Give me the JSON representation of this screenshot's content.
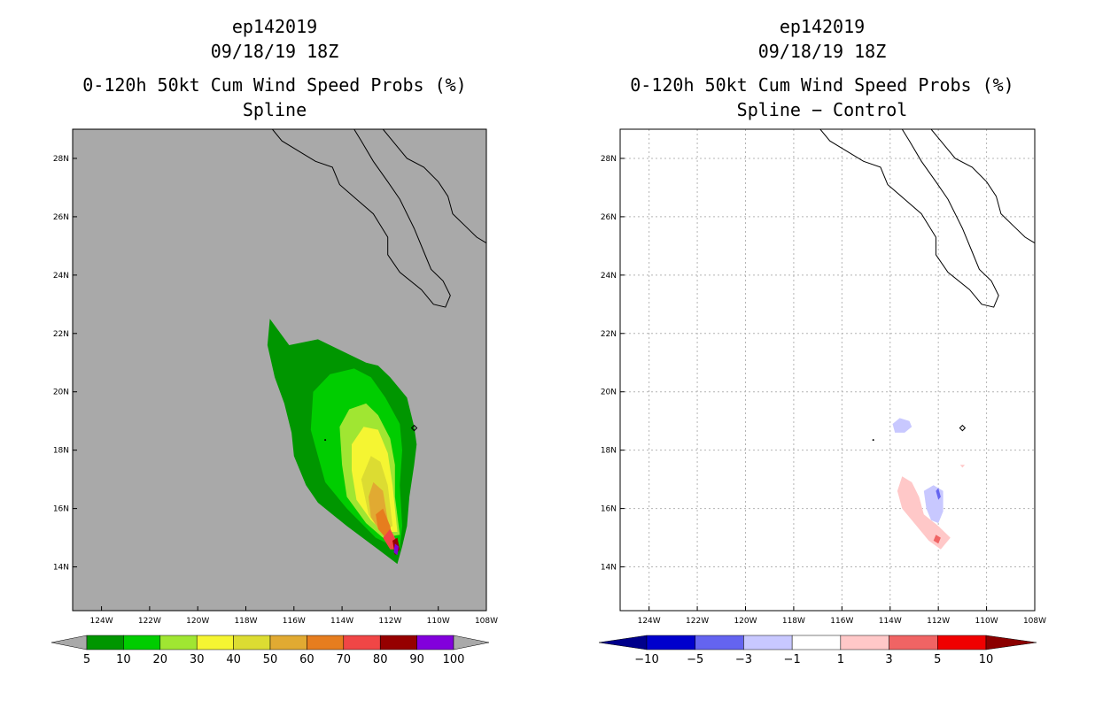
{
  "panels": [
    {
      "storm_id": "ep142019",
      "datetime": "09/18/19 18Z",
      "title": "0-120h 50kt Cum Wind Speed Probs (%)",
      "subtitle": "Spline"
    },
    {
      "storm_id": "ep142019",
      "datetime": "09/18/19 18Z",
      "title": "0-120h 50kt Cum Wind Speed Probs (%)",
      "subtitle": "Spline − Control"
    }
  ],
  "chart_data": [
    {
      "type": "heatmap",
      "title": "0-120h 50kt Cum Wind Speed Probs (%)",
      "subtitle": "Spline",
      "lon_range": [
        -125.2,
        -108
      ],
      "lat_range": [
        12.5,
        29
      ],
      "x_ticks": [
        "124W",
        "122W",
        "120W",
        "118W",
        "116W",
        "114W",
        "112W",
        "110W",
        "108W"
      ],
      "y_ticks": [
        "14N",
        "16N",
        "18N",
        "20N",
        "22N",
        "24N",
        "26N",
        "28N"
      ],
      "background_color": "#a9a9a9",
      "grid": false,
      "colorbar": {
        "labels": [
          "5",
          "10",
          "20",
          "30",
          "40",
          "50",
          "60",
          "70",
          "80",
          "90",
          "100"
        ],
        "colors": [
          "#009600",
          "#00cd00",
          "#a0e632",
          "#f5f532",
          "#dcdc32",
          "#e1aa32",
          "#e67d1e",
          "#f04646",
          "#960000",
          "#8200dc"
        ],
        "under_color": "#a9a9a9",
        "over_color": "#a9a9a9"
      },
      "contours": [
        {
          "level": 5,
          "points": [
            [
              -117.0,
              22.5
            ],
            [
              -116.2,
              21.6
            ],
            [
              -115.0,
              21.8
            ],
            [
              -114.0,
              21.4
            ],
            [
              -113.0,
              21.0
            ],
            [
              -112.5,
              20.9
            ],
            [
              -112.0,
              20.5
            ],
            [
              -111.3,
              19.8
            ],
            [
              -111.0,
              18.8
            ],
            [
              -110.9,
              18.2
            ],
            [
              -111.0,
              17.5
            ],
            [
              -111.2,
              16.4
            ],
            [
              -111.3,
              15.4
            ],
            [
              -111.5,
              14.7
            ],
            [
              -111.7,
              14.1
            ],
            [
              -112.5,
              14.6
            ],
            [
              -113.8,
              15.4
            ],
            [
              -115.0,
              16.2
            ],
            [
              -115.5,
              16.8
            ],
            [
              -116.0,
              17.8
            ],
            [
              -116.1,
              18.6
            ],
            [
              -116.4,
              19.6
            ],
            [
              -116.8,
              20.5
            ],
            [
              -117.1,
              21.6
            ]
          ]
        },
        {
          "level": 10,
          "points": [
            [
              -115.2,
              20.0
            ],
            [
              -114.5,
              20.6
            ],
            [
              -113.5,
              20.8
            ],
            [
              -112.8,
              20.5
            ],
            [
              -112.2,
              19.8
            ],
            [
              -111.6,
              18.9
            ],
            [
              -111.5,
              18.0
            ],
            [
              -111.6,
              16.8
            ],
            [
              -111.5,
              15.4
            ],
            [
              -111.6,
              14.6
            ],
            [
              -112.6,
              15.0
            ],
            [
              -113.8,
              16.0
            ],
            [
              -114.7,
              16.9
            ],
            [
              -115.0,
              17.8
            ],
            [
              -115.3,
              18.7
            ]
          ]
        },
        {
          "level": 20,
          "points": [
            [
              -114.1,
              18.8
            ],
            [
              -113.7,
              19.4
            ],
            [
              -113.0,
              19.6
            ],
            [
              -112.5,
              19.2
            ],
            [
              -112.0,
              18.4
            ],
            [
              -111.8,
              17.5
            ],
            [
              -111.8,
              16.4
            ],
            [
              -111.6,
              15.1
            ],
            [
              -112.3,
              15.0
            ],
            [
              -113.0,
              15.5
            ],
            [
              -113.8,
              16.4
            ],
            [
              -114.0,
              17.5
            ]
          ]
        },
        {
          "level": 30,
          "points": [
            [
              -113.6,
              18.2
            ],
            [
              -113.1,
              18.8
            ],
            [
              -112.5,
              18.7
            ],
            [
              -112.1,
              17.9
            ],
            [
              -111.9,
              16.8
            ],
            [
              -111.7,
              15.2
            ],
            [
              -112.3,
              15.2
            ],
            [
              -112.8,
              15.6
            ],
            [
              -113.4,
              16.3
            ],
            [
              -113.6,
              17.3
            ]
          ]
        },
        {
          "level": 40,
          "points": [
            [
              -113.2,
              17.0
            ],
            [
              -112.8,
              17.8
            ],
            [
              -112.4,
              17.6
            ],
            [
              -112.1,
              16.8
            ],
            [
              -111.9,
              15.4
            ],
            [
              -112.4,
              15.2
            ],
            [
              -112.9,
              15.8
            ]
          ]
        },
        {
          "level": 50,
          "points": [
            [
              -112.9,
              16.4
            ],
            [
              -112.7,
              16.9
            ],
            [
              -112.3,
              16.6
            ],
            [
              -112.1,
              15.6
            ],
            [
              -112.0,
              14.9
            ],
            [
              -112.4,
              15.2
            ],
            [
              -112.8,
              15.7
            ]
          ]
        },
        {
          "level": 60,
          "points": [
            [
              -112.6,
              15.8
            ],
            [
              -112.3,
              16.0
            ],
            [
              -112.0,
              15.4
            ],
            [
              -111.9,
              14.9
            ],
            [
              -112.2,
              15.0
            ],
            [
              -112.5,
              15.3
            ]
          ]
        },
        {
          "level": 70,
          "points": [
            [
              -112.3,
              15.0
            ],
            [
              -112.0,
              15.3
            ],
            [
              -111.8,
              15.0
            ],
            [
              -111.7,
              14.6
            ],
            [
              -112.0,
              14.6
            ]
          ]
        },
        {
          "level": 80,
          "points": [
            [
              -111.9,
              14.9
            ],
            [
              -111.7,
              15.0
            ],
            [
              -111.6,
              14.6
            ],
            [
              -111.8,
              14.4
            ]
          ]
        },
        {
          "level": 90,
          "points": [
            [
              -111.8,
              14.8
            ],
            [
              -111.65,
              14.7
            ],
            [
              -111.7,
              14.4
            ],
            [
              -111.85,
              14.5
            ]
          ]
        }
      ]
    },
    {
      "type": "heatmap",
      "title": "0-120h 50kt Cum Wind Speed Probs (%)",
      "subtitle": "Spline − Control",
      "lon_range": [
        -125.2,
        -108
      ],
      "lat_range": [
        12.5,
        29
      ],
      "x_ticks": [
        "124W",
        "122W",
        "120W",
        "118W",
        "116W",
        "114W",
        "112W",
        "110W",
        "108W"
      ],
      "y_ticks": [
        "14N",
        "16N",
        "18N",
        "20N",
        "22N",
        "24N",
        "26N",
        "28N"
      ],
      "background_color": "#ffffff",
      "grid": true,
      "colorbar": {
        "labels": [
          "−10",
          "−5",
          "−3",
          "−1",
          "1",
          "3",
          "5",
          "10"
        ],
        "colors": [
          "#0000cd",
          "#6464f0",
          "#c8c8ff",
          "#ffffff",
          "#ffc8c8",
          "#f06464",
          "#f00000"
        ],
        "under_color": "#00008b",
        "over_color": "#8b0000"
      },
      "contours": [
        {
          "level": -1,
          "points": [
            [
              -113.9,
              18.9
            ],
            [
              -113.6,
              19.1
            ],
            [
              -113.2,
              19.0
            ],
            [
              -113.1,
              18.8
            ],
            [
              -113.4,
              18.6
            ],
            [
              -113.8,
              18.6
            ]
          ]
        },
        {
          "level": -1,
          "points": [
            [
              -112.6,
              16.6
            ],
            [
              -112.2,
              16.8
            ],
            [
              -111.8,
              16.6
            ],
            [
              -111.8,
              15.9
            ],
            [
              -112.0,
              15.5
            ],
            [
              -112.3,
              15.6
            ],
            [
              -112.5,
              16.0
            ]
          ]
        },
        {
          "level": -3,
          "points": [
            [
              -112.1,
              16.6
            ],
            [
              -112.0,
              16.7
            ],
            [
              -111.9,
              16.4
            ],
            [
              -112.0,
              16.3
            ]
          ]
        },
        {
          "level": 1,
          "points": [
            [
              -113.5,
              17.1
            ],
            [
              -113.1,
              16.9
            ],
            [
              -112.8,
              16.4
            ],
            [
              -112.6,
              15.8
            ],
            [
              -112.0,
              15.4
            ],
            [
              -111.5,
              15.0
            ],
            [
              -111.9,
              14.6
            ],
            [
              -112.4,
              14.9
            ],
            [
              -113.0,
              15.5
            ],
            [
              -113.5,
              16.0
            ],
            [
              -113.7,
              16.6
            ]
          ]
        },
        {
          "level": 1,
          "points": [
            [
              -111.1,
              17.5
            ],
            [
              -110.9,
              17.5
            ],
            [
              -111.0,
              17.4
            ]
          ]
        },
        {
          "level": 3,
          "points": [
            [
              -112.1,
              15.1
            ],
            [
              -111.9,
              15.0
            ],
            [
              -112.0,
              14.8
            ],
            [
              -112.2,
              14.9
            ]
          ]
        }
      ]
    }
  ]
}
